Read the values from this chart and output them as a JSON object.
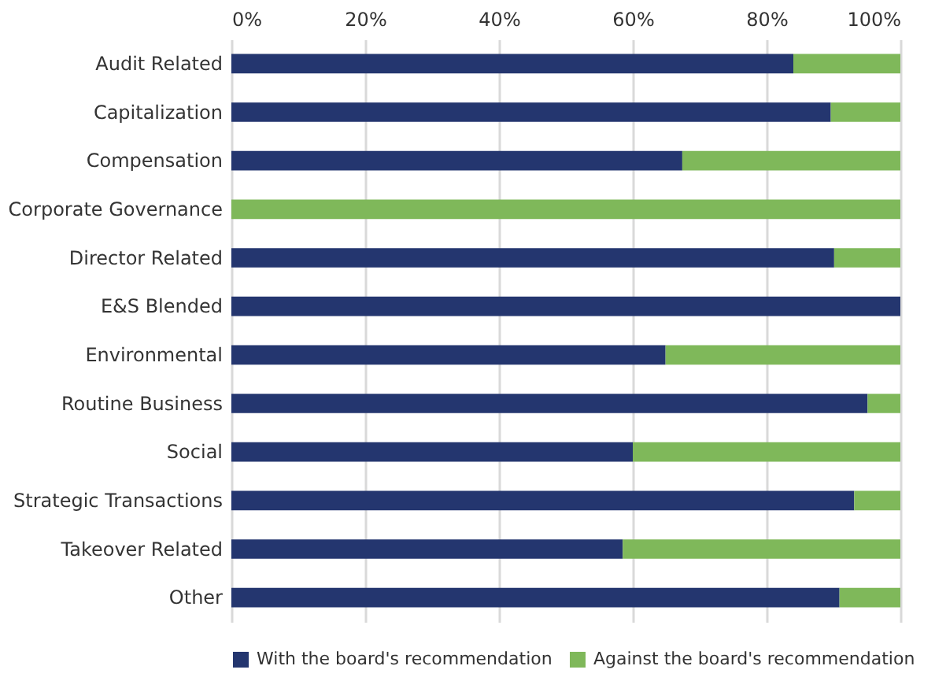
{
  "chart_data": {
    "type": "bar",
    "orientation": "horizontal",
    "stacked": true,
    "categories": [
      "Audit Related",
      "Capitalization",
      "Compensation",
      "Corporate Governance",
      "Director Related",
      "E&S Blended",
      "Environmental",
      "Routine Business",
      "Social",
      "Strategic Transactions",
      "Takeover Related",
      "Other"
    ],
    "series": [
      {
        "name": "With the board's recommendation",
        "color": "#24366f",
        "values": [
          84.0,
          89.6,
          67.4,
          0,
          90.1,
          100,
          64.9,
          95.1,
          60.0,
          93.1,
          58.5,
          90.9
        ]
      },
      {
        "name": "Against the board's recommendation",
        "color": "#7fb85a",
        "values": [
          16.0,
          10.4,
          32.6,
          100,
          9.9,
          0,
          35.1,
          4.9,
          40.0,
          6.9,
          41.5,
          9.1
        ]
      }
    ],
    "xlim": [
      0,
      100
    ],
    "xticks": [
      {
        "value": 0,
        "label": "0%"
      },
      {
        "value": 20,
        "label": "20%"
      },
      {
        "value": 40,
        "label": "40%"
      },
      {
        "value": 60,
        "label": "60%"
      },
      {
        "value": 80,
        "label": "80%"
      },
      {
        "value": 100,
        "label": "100%"
      }
    ],
    "grid": "x",
    "legend": "bottom"
  }
}
